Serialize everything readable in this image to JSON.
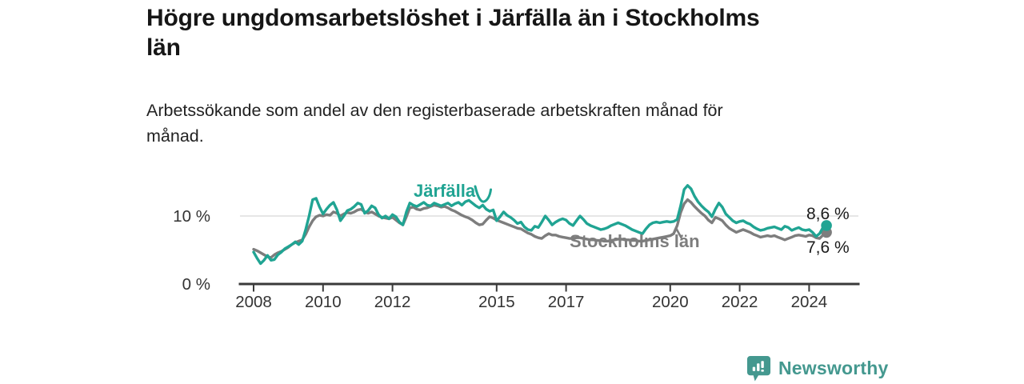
{
  "title": {
    "text": "Högre ungdomsarbetslöshet i Järfälla än i Stockholms län",
    "lines": [
      "Högre ungdomsarbetslöshet i Järfälla än i Stockholms",
      "län"
    ]
  },
  "subtitle": {
    "text": "Arbetssökande som andel av den registerbaserade arbetskraften månad för månad.",
    "lines": [
      "Arbetssökande som andel av den registerbaserade arbetskraften månad för",
      "månad."
    ]
  },
  "footer": {
    "brand": "Newsworthy",
    "logo_icon": "bar-chart-speech-bubble-icon",
    "brand_color": "#44988F"
  },
  "colors": {
    "jarfalla": "#20A493",
    "stockholm": "#7D7D7D",
    "grid": "#D8D8D8",
    "axis": "#3A3A3A",
    "tick_text": "#333333",
    "value_text": "#1B1B1B",
    "title_text": "#161616"
  },
  "chart_data": {
    "type": "line",
    "title": "Högre ungdomsarbetslöshet i Järfälla än i Stockholms län",
    "subtitle": "Arbetssökande som andel av den registerbaserade arbetskraften månad för månad.",
    "unit": "%",
    "x_range": [
      2008.0,
      2024.5
    ],
    "ylim": [
      0,
      15.5
    ],
    "grid": "horizontal-10-only",
    "legend_position": "inline-labels",
    "x_ticks": [
      {
        "value": 2008,
        "label": "2008"
      },
      {
        "value": 2010,
        "label": "2010"
      },
      {
        "value": 2012,
        "label": "2012"
      },
      {
        "value": 2015,
        "label": "2015"
      },
      {
        "value": 2017,
        "label": "2017"
      },
      {
        "value": 2020,
        "label": "2020"
      },
      {
        "value": 2022,
        "label": "2022"
      },
      {
        "value": 2024,
        "label": "2024"
      }
    ],
    "y_ticks": [
      {
        "value": 0,
        "label": "0 %"
      },
      {
        "value": 10,
        "label": "10 %"
      }
    ],
    "series": [
      {
        "name": "Järfälla",
        "color": "#20A493",
        "end_label": "8,6 %",
        "end_value": 8.6,
        "start_year": 2008.0,
        "step_years": 0.1,
        "values": [
          4.7,
          3.8,
          3.0,
          3.5,
          4.2,
          3.5,
          3.6,
          4.3,
          4.7,
          5.2,
          5.5,
          5.8,
          6.2,
          5.8,
          6.3,
          8.0,
          10.0,
          12.4,
          12.6,
          11.3,
          10.3,
          11.0,
          11.6,
          12.0,
          10.9,
          9.3,
          10.0,
          10.8,
          11.0,
          11.4,
          11.9,
          11.7,
          10.4,
          10.8,
          11.5,
          11.2,
          10.2,
          9.7,
          10.0,
          9.6,
          10.2,
          9.9,
          9.1,
          8.7,
          10.6,
          11.9,
          11.6,
          11.4,
          11.7,
          12.0,
          11.6,
          11.5,
          11.9,
          11.7,
          11.5,
          11.7,
          11.9,
          11.5,
          11.8,
          12.0,
          11.6,
          12.1,
          12.3,
          11.9,
          11.5,
          11.2,
          11.6,
          11.0,
          10.7,
          10.9,
          9.3,
          9.9,
          10.6,
          10.1,
          9.8,
          9.4,
          8.9,
          9.1,
          8.4,
          8.0,
          7.9,
          8.5,
          8.3,
          9.1,
          10.0,
          9.4,
          8.7,
          9.1,
          9.4,
          9.6,
          9.4,
          8.9,
          8.6,
          9.3,
          10.0,
          9.5,
          8.9,
          8.6,
          8.4,
          8.2,
          8.0,
          8.1,
          8.3,
          8.6,
          8.8,
          9.0,
          8.8,
          8.6,
          8.3,
          8.0,
          7.8,
          7.6,
          7.4,
          8.1,
          8.7,
          9.0,
          9.1,
          9.0,
          9.1,
          9.2,
          9.1,
          9.2,
          9.5,
          11.5,
          13.9,
          14.5,
          14.0,
          12.9,
          12.1,
          11.5,
          11.0,
          10.6,
          9.9,
          11.0,
          11.9,
          11.3,
          10.3,
          9.8,
          9.3,
          9.0,
          9.2,
          9.3,
          9.0,
          8.8,
          8.4,
          8.1,
          7.9,
          8.0,
          8.2,
          8.3,
          8.4,
          8.2,
          8.0,
          8.5,
          8.3,
          7.9,
          8.1,
          8.3,
          8.0,
          7.9,
          8.0,
          7.6,
          7.0,
          7.4,
          8.3,
          8.6
        ]
      },
      {
        "name": "Stockholms län",
        "color": "#7D7D7D",
        "end_label": "7,6 %",
        "end_value": 7.6,
        "start_year": 2008.0,
        "step_years": 0.1,
        "values": [
          5.1,
          4.9,
          4.6,
          4.3,
          4.0,
          3.9,
          4.3,
          4.6,
          4.8,
          5.1,
          5.4,
          5.8,
          6.1,
          6.3,
          6.5,
          7.3,
          8.4,
          9.3,
          9.9,
          10.1,
          10.0,
          10.2,
          10.1,
          10.6,
          10.4,
          10.0,
          10.3,
          10.5,
          10.4,
          10.6,
          10.9,
          11.0,
          10.6,
          10.4,
          10.6,
          10.3,
          10.0,
          9.8,
          9.7,
          9.6,
          9.8,
          9.4,
          9.0,
          8.7,
          9.9,
          11.2,
          11.3,
          11.0,
          10.9,
          11.1,
          11.2,
          11.4,
          11.6,
          11.5,
          11.3,
          11.4,
          11.2,
          10.9,
          10.7,
          10.4,
          10.1,
          9.9,
          9.7,
          9.4,
          9.0,
          8.7,
          8.8,
          9.4,
          9.9,
          9.7,
          9.4,
          9.2,
          9.0,
          8.8,
          8.6,
          8.4,
          8.2,
          8.1,
          7.8,
          7.5,
          7.3,
          7.0,
          6.8,
          6.7,
          7.1,
          7.4,
          7.2,
          7.2,
          7.0,
          6.9,
          6.8,
          6.7,
          6.7,
          6.8,
          6.8,
          6.7,
          6.6,
          6.5,
          6.5,
          6.4,
          6.4,
          6.3,
          6.3,
          6.4,
          6.5,
          6.6,
          6.6,
          6.5,
          6.5,
          6.4,
          6.4,
          6.3,
          6.3,
          6.4,
          6.5,
          6.6,
          6.7,
          6.8,
          6.9,
          7.0,
          7.1,
          7.4,
          8.6,
          10.5,
          11.8,
          12.4,
          12.0,
          11.4,
          10.9,
          10.4,
          10.0,
          9.4,
          9.0,
          9.8,
          9.6,
          9.3,
          8.7,
          8.2,
          7.9,
          7.6,
          7.8,
          8.0,
          7.8,
          7.6,
          7.3,
          7.1,
          6.9,
          7.0,
          7.1,
          7.0,
          7.1,
          6.9,
          6.7,
          6.5,
          6.7,
          6.9,
          7.1,
          7.2,
          7.1,
          7.0,
          7.2,
          7.1,
          6.8,
          6.7,
          7.2,
          7.6
        ]
      }
    ],
    "annotations": [
      {
        "text": "Järfälla",
        "color": "#20A493"
      },
      {
        "text": "Stockholms län",
        "color": "#7D7D7D"
      }
    ]
  }
}
